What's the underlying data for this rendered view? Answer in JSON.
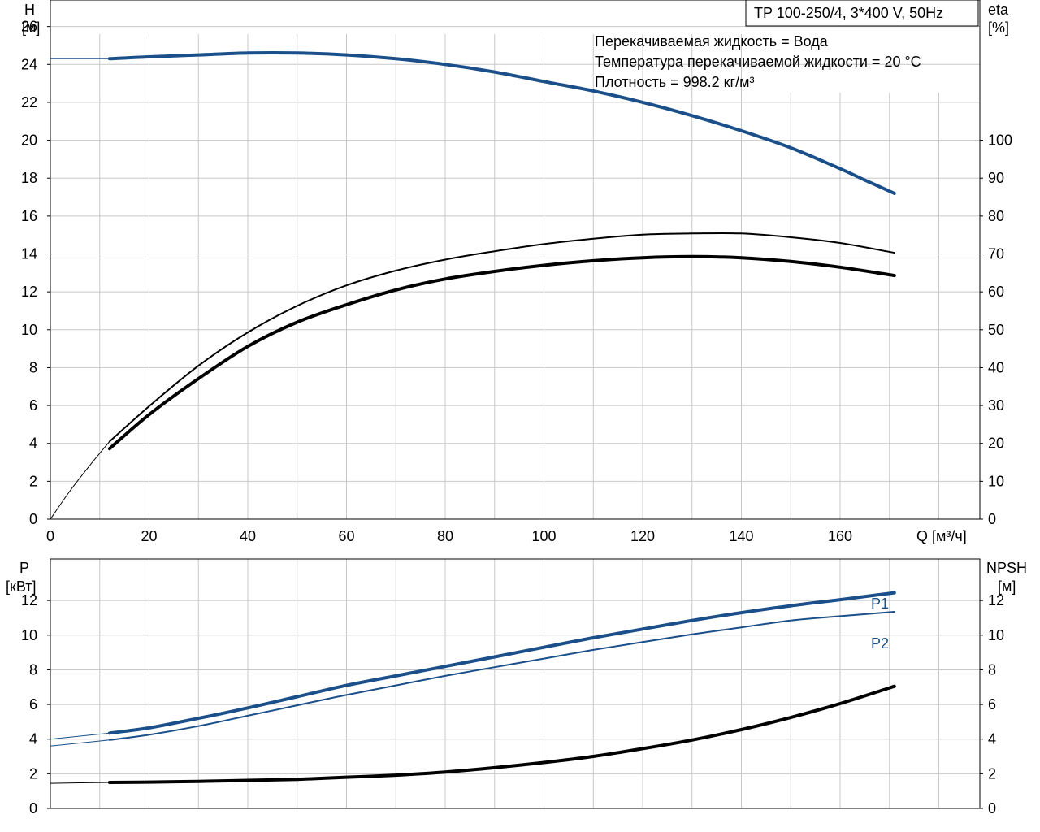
{
  "title": "TP 100-250/4, 3*400 V, 50Hz",
  "info_lines": [
    "Перекачиваемая жидкость = Вода",
    "Температура перекачиваемой жидкости = 20 °C",
    "Плотность = 998.2 кг/м³"
  ],
  "colors": {
    "blue": "#1a4f8a",
    "black": "#000000",
    "grid": "#c8c8c8"
  },
  "chart_data": [
    {
      "type": "line",
      "x_label": "Q [м³/ч]",
      "left_axis": {
        "label_top": "H",
        "label_unit": "[м]",
        "ticks": [
          0,
          2,
          4,
          6,
          8,
          10,
          12,
          14,
          16,
          18,
          20,
          22,
          24,
          26
        ],
        "ylim": [
          0,
          27.4
        ]
      },
      "right_axis": {
        "label_top": "eta",
        "label_unit": "[%]",
        "ticks": [
          0,
          10,
          20,
          30,
          40,
          50,
          60,
          70,
          80,
          90,
          100
        ],
        "ylim": [
          0,
          137
        ]
      },
      "x_ticks": [
        0,
        20,
        40,
        60,
        80,
        100,
        120,
        140,
        160
      ],
      "xlim": [
        0,
        180
      ],
      "series": [
        {
          "key": "H",
          "axis": "left",
          "color": "blue",
          "width": 4,
          "x": [
            12,
            20,
            30,
            40,
            50,
            60,
            70,
            80,
            90,
            100,
            110,
            120,
            130,
            140,
            150,
            160,
            165,
            171
          ],
          "y": [
            24.3,
            24.4,
            24.5,
            24.6,
            24.6,
            24.5,
            24.3,
            24.0,
            23.6,
            23.1,
            22.6,
            22.0,
            21.3,
            20.5,
            19.6,
            18.5,
            17.9,
            17.2
          ],
          "ext": {
            "x": [
              0,
              12
            ],
            "y": [
              24.3,
              24.3
            ]
          }
        },
        {
          "key": "eta_total",
          "axis": "right",
          "color": "black",
          "width": 2,
          "x": [
            12,
            20,
            30,
            40,
            50,
            60,
            70,
            80,
            90,
            100,
            110,
            120,
            130,
            140,
            150,
            160,
            171
          ],
          "y": [
            20.5,
            29.8,
            40.5,
            49.3,
            56.3,
            61.7,
            65.6,
            68.5,
            70.7,
            72.6,
            74.0,
            75.1,
            75.4,
            75.4,
            74.4,
            72.9,
            70.3
          ],
          "ext": {
            "x": [
              0,
              4,
              8,
              12
            ],
            "y": [
              0,
              7.5,
              14.2,
              20.5
            ]
          }
        },
        {
          "key": "eta_pump",
          "axis": "right",
          "color": "black",
          "width": 4,
          "x": [
            12,
            20,
            30,
            40,
            50,
            60,
            70,
            80,
            90,
            100,
            110,
            120,
            130,
            140,
            150,
            160,
            171
          ],
          "y": [
            18.6,
            27.6,
            37.1,
            45.6,
            52.0,
            56.6,
            60.5,
            63.4,
            65.4,
            67.0,
            68.2,
            69.0,
            69.3,
            69.0,
            68.0,
            66.5,
            64.3
          ]
        }
      ]
    },
    {
      "type": "line",
      "left_axis": {
        "label_top": "P",
        "label_unit": "[кВт]",
        "ticks": [
          0,
          2,
          4,
          6,
          8,
          10,
          12
        ],
        "ylim": [
          0,
          14.4
        ]
      },
      "right_axis": {
        "label_top": "NPSH",
        "label_unit": "[м]",
        "ticks": [
          0,
          2,
          4,
          6,
          8,
          10,
          12
        ],
        "ylim": [
          0,
          14.4
        ]
      },
      "x_ticks": [
        0,
        20,
        40,
        60,
        80,
        100,
        120,
        140,
        160
      ],
      "xlim": [
        0,
        180
      ],
      "series": [
        {
          "key": "P1",
          "name": "P1",
          "axis": "left",
          "color": "blue",
          "width": 4,
          "x": [
            12,
            20,
            30,
            40,
            50,
            60,
            70,
            80,
            90,
            100,
            110,
            120,
            130,
            140,
            150,
            160,
            171
          ],
          "y": [
            4.35,
            4.65,
            5.2,
            5.8,
            6.45,
            7.1,
            7.65,
            8.2,
            8.75,
            9.3,
            9.85,
            10.35,
            10.85,
            11.3,
            11.7,
            12.05,
            12.45
          ],
          "ext": {
            "x": [
              0,
              12
            ],
            "y": [
              4.0,
              4.35
            ]
          }
        },
        {
          "key": "P2",
          "name": "P2",
          "axis": "left",
          "color": "blue",
          "width": 2,
          "x": [
            12,
            20,
            30,
            40,
            50,
            60,
            70,
            80,
            90,
            100,
            110,
            120,
            130,
            140,
            150,
            160,
            171
          ],
          "y": [
            3.95,
            4.25,
            4.75,
            5.35,
            5.95,
            6.55,
            7.1,
            7.65,
            8.15,
            8.65,
            9.15,
            9.6,
            10.05,
            10.45,
            10.85,
            11.1,
            11.35
          ],
          "ext": {
            "x": [
              0,
              12
            ],
            "y": [
              3.6,
              3.95
            ]
          }
        },
        {
          "key": "NPSH",
          "axis": "right",
          "color": "black",
          "width": 4,
          "x": [
            12,
            20,
            30,
            40,
            50,
            60,
            70,
            80,
            90,
            100,
            110,
            120,
            130,
            140,
            150,
            160,
            171
          ],
          "y": [
            1.5,
            1.52,
            1.56,
            1.62,
            1.68,
            1.8,
            1.92,
            2.1,
            2.35,
            2.65,
            3.0,
            3.45,
            3.95,
            4.55,
            5.25,
            6.05,
            7.05
          ],
          "ext": {
            "x": [
              0,
              12
            ],
            "y": [
              1.45,
              1.5
            ]
          }
        }
      ]
    }
  ]
}
